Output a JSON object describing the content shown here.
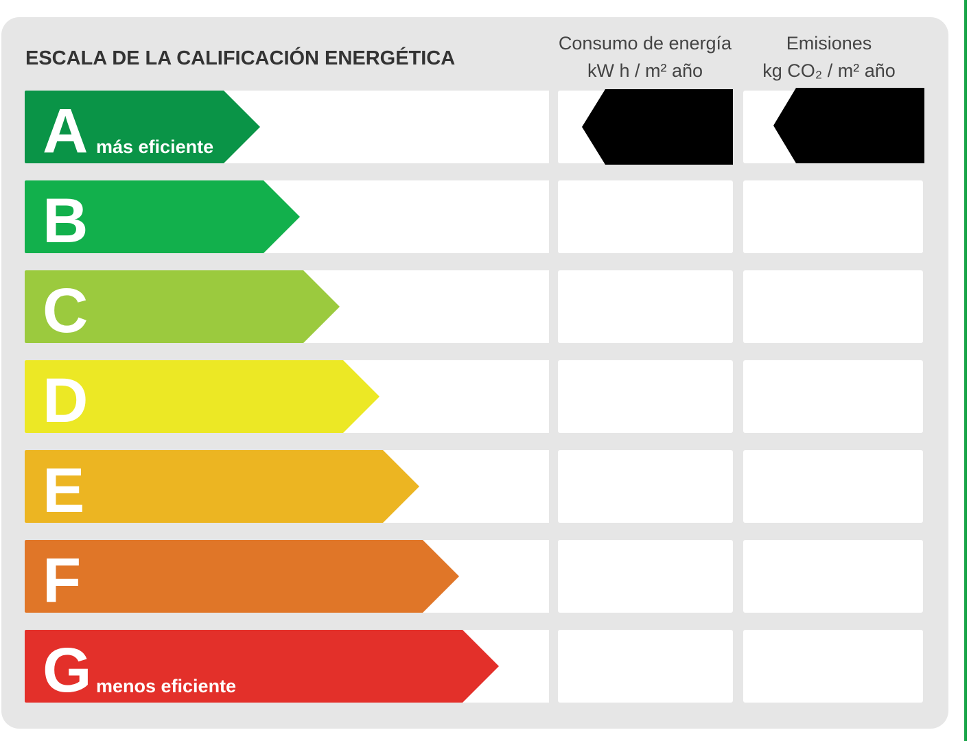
{
  "header": {
    "title": "ESCALA DE LA CALIFICACIÓN ENERGÉTICA",
    "columns": [
      {
        "lines": [
          "Consumo de energía",
          "kW h  / m² año"
        ]
      },
      {
        "lines": [
          "Emisiones",
          "kg CO₂  / m² año"
        ]
      }
    ]
  },
  "grades": [
    {
      "letter": "A",
      "note": "más eficiente",
      "color": "#0a9447"
    },
    {
      "letter": "B",
      "color": "#12b04c"
    },
    {
      "letter": "C",
      "color": "#9bca3e"
    },
    {
      "letter": "D",
      "color": "#ece825"
    },
    {
      "letter": "E",
      "color": "#ecb522"
    },
    {
      "letter": "F",
      "color": "#e07628"
    },
    {
      "letter": "G",
      "note": "menos eficiente",
      "color": "#e3302a"
    }
  ]
}
